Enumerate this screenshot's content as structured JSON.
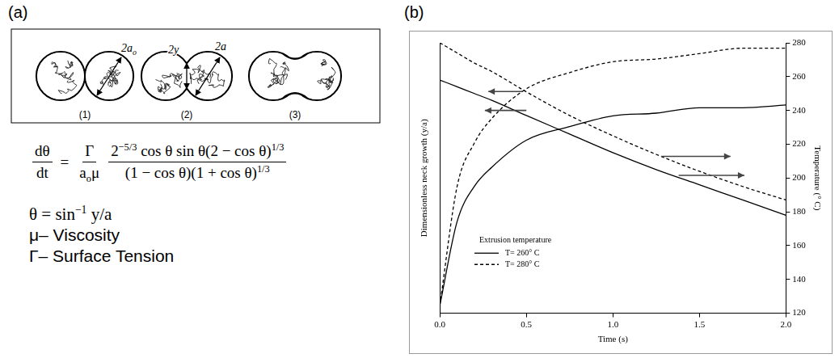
{
  "panel_a": {
    "letter": "(a)",
    "diagram": {
      "stages": [
        {
          "label": "(1)",
          "dimensions": [
            [
              {
                "t": "2a"
              },
              {
                "sub": "o"
              }
            ]
          ]
        },
        {
          "label": "(2)",
          "dimensions": [
            [
              {
                "t": "2y"
              }
            ],
            [
              {
                "t": "2a"
              }
            ]
          ]
        },
        {
          "label": "(3)",
          "dimensions": []
        }
      ]
    },
    "equation": {
      "lhs": {
        "num": [
          {
            "t": "dθ"
          }
        ],
        "den": [
          {
            "t": "dt"
          }
        ]
      },
      "equals": "=",
      "factor": {
        "num": [
          {
            "t": "Γ"
          }
        ],
        "den": [
          {
            "t": "a"
          },
          {
            "sub": "o"
          },
          {
            "t": "μ"
          }
        ]
      },
      "fraction": {
        "num": [
          {
            "t": "2"
          },
          {
            "sup": "−5/3"
          },
          {
            "t": " cos θ sin θ(2 − cos θ)"
          },
          {
            "sup": "1/3"
          }
        ],
        "den": [
          {
            "t": "(1 − cos θ)(1 + cos θ)"
          },
          {
            "sup": "1/3"
          }
        ]
      }
    },
    "definitions": [
      [
        {
          "t": "θ = sin"
        },
        {
          "sup": "−1"
        },
        {
          "t": " y/a"
        }
      ],
      [
        {
          "t": "μ– Viscosity"
        }
      ],
      [
        {
          "t": "Γ– Surface Tension"
        }
      ]
    ]
  },
  "chart_data": {
    "type": "line",
    "panel_letter": "(b)",
    "xlabel": "Time (s)",
    "ylabel": "Dimensionless neck growth (y/a)",
    "y2label": "Temperature (° C)",
    "x": [
      0,
      0.1,
      0.2,
      0.3,
      0.5,
      0.75,
      1.0,
      1.25,
      1.5,
      1.75,
      2.0
    ],
    "xlim": [
      0,
      2
    ],
    "xticks": [
      {
        "value": 0,
        "label": "0.0"
      },
      {
        "value": 0.5,
        "label": "0.5"
      },
      {
        "value": 1,
        "label": "1.0"
      },
      {
        "value": 1.5,
        "label": "1.5"
      },
      {
        "value": 2,
        "label": "2.0"
      }
    ],
    "ylim": [
      0,
      1
    ],
    "y2lim": [
      120,
      280
    ],
    "y2ticks": [
      120,
      140,
      160,
      180,
      200,
      220,
      240,
      260,
      280
    ],
    "grid": false,
    "legend": "lower left",
    "legend_title": "Extrusion temperature",
    "series": [
      {
        "name": "T= 260° C",
        "color": "#000000",
        "line_style": "solid",
        "axis": "y",
        "values": [
          0.03,
          0.34,
          0.47,
          0.54,
          0.64,
          0.69,
          0.73,
          0.74,
          0.76,
          0.76,
          0.77
        ]
      },
      {
        "name": "T= 280° C",
        "color": "#000000",
        "line_style": "dashed",
        "axis": "y",
        "values": [
          0.03,
          0.47,
          0.63,
          0.72,
          0.83,
          0.89,
          0.93,
          0.94,
          0.96,
          0.98,
          0.98
        ]
      },
      {
        "name": "T= 260° C",
        "color": "#000000",
        "line_style": "solid",
        "axis": "y2",
        "values": [
          258,
          254,
          250,
          246,
          237,
          226,
          215,
          205,
          196,
          187,
          178
        ]
      },
      {
        "name": "T= 280° C",
        "color": "#000000",
        "line_style": "dashed",
        "axis": "y2",
        "values": [
          280,
          274,
          268,
          263,
          251,
          237,
          225,
          214,
          204,
          195,
          187
        ]
      }
    ]
  }
}
